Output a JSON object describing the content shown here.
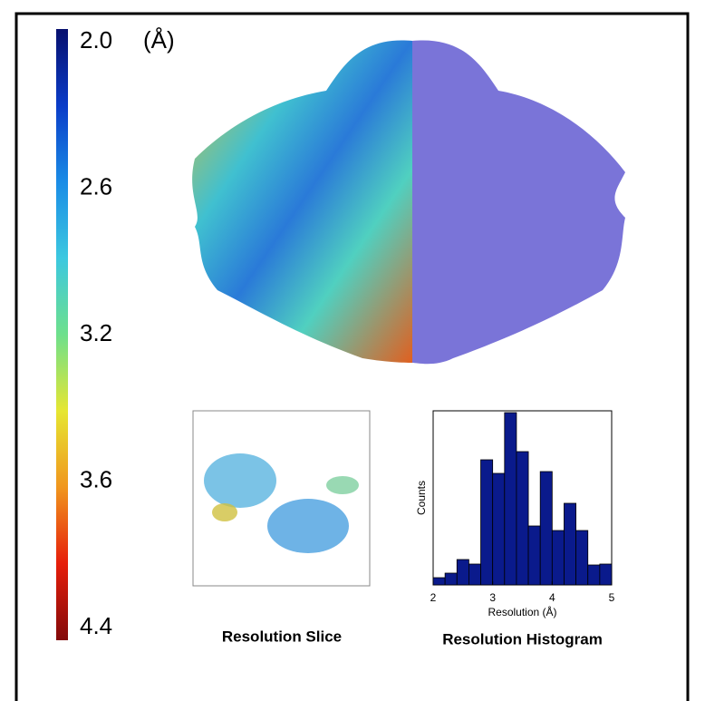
{
  "chart_data": [
    {
      "type": "colorbar",
      "unit": "(Å)",
      "colors": [
        "#08106e",
        "#0a3cc8",
        "#1a8ce6",
        "#3cc8e0",
        "#6ee08c",
        "#e6e632",
        "#f0961e",
        "#e61e0a",
        "#820a0a"
      ],
      "yticks": [
        {
          "value": 2,
          "label": "2.0"
        },
        2.6,
        3.2,
        3.6,
        4.4
      ]
    },
    {
      "type": "image",
      "title": "Resolution Slice"
    },
    {
      "type": "histogram",
      "title": "Resolution Histogram",
      "xlabel": "Resolution (Å)",
      "ylabel": "Counts",
      "color": "#0a1a8c",
      "bins": [
        2.0,
        2.2,
        2.4,
        2.6,
        2.8,
        3.0,
        3.2,
        3.4,
        3.6,
        3.8,
        4.0,
        4.2,
        4.4,
        4.6,
        4.8,
        5.0
      ],
      "counts": [
        8,
        13,
        28,
        23,
        138,
        123,
        190,
        147,
        65,
        125,
        60,
        90,
        60,
        22,
        23
      ],
      "xlim": [
        2,
        5
      ],
      "ylim": [
        0,
        192
      ],
      "xticks": [
        2,
        3,
        4,
        5
      ]
    }
  ]
}
